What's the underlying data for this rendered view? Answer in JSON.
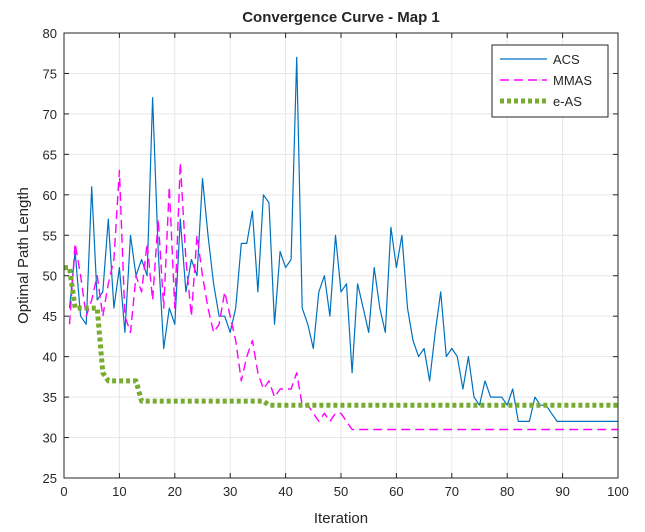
{
  "chart_data": {
    "type": "line",
    "title": "Convergence Curve - Map 1",
    "xlabel": "Iteration",
    "ylabel": "Optimal Path Length",
    "xlim": [
      0,
      100
    ],
    "ylim": [
      25,
      80
    ],
    "xticks": [
      0,
      10,
      20,
      30,
      40,
      50,
      60,
      70,
      80,
      90,
      100
    ],
    "yticks": [
      25,
      30,
      35,
      40,
      45,
      50,
      55,
      60,
      65,
      70,
      75,
      80
    ],
    "grid": true,
    "legend_position": "top-right",
    "series": [
      {
        "name": "ACS",
        "color": "#0072BD",
        "style": "solid",
        "x": [
          1,
          2,
          3,
          4,
          5,
          6,
          7,
          8,
          9,
          10,
          11,
          12,
          13,
          14,
          15,
          16,
          17,
          18,
          19,
          20,
          21,
          22,
          23,
          24,
          25,
          26,
          27,
          28,
          29,
          30,
          31,
          32,
          33,
          34,
          35,
          36,
          37,
          38,
          39,
          40,
          41,
          42,
          43,
          44,
          45,
          46,
          47,
          48,
          49,
          50,
          51,
          52,
          53,
          54,
          55,
          56,
          57,
          58,
          59,
          60,
          61,
          62,
          63,
          64,
          65,
          66,
          67,
          68,
          69,
          70,
          71,
          72,
          73,
          74,
          75,
          76,
          77,
          78,
          79,
          80,
          81,
          82,
          83,
          84,
          85,
          86,
          87,
          88,
          89,
          90,
          91,
          92,
          93,
          94,
          95,
          96,
          97,
          98,
          99,
          100
        ],
        "values": [
          46,
          53,
          45,
          44,
          61,
          47,
          48,
          57,
          46,
          51,
          43,
          55,
          50,
          52,
          50,
          72,
          53,
          41,
          46,
          44,
          57,
          48,
          52,
          50,
          62,
          55,
          49,
          45,
          45,
          43,
          46,
          54,
          54,
          58,
          48,
          60,
          59,
          44,
          53,
          51,
          52,
          77,
          46,
          44,
          41,
          48,
          50,
          45,
          55,
          48,
          49,
          38,
          49,
          46,
          43,
          51,
          46,
          43,
          56,
          51,
          55,
          46,
          42,
          40,
          41,
          37,
          43,
          48,
          40,
          41,
          40,
          36,
          40,
          35,
          34,
          37,
          35,
          35,
          35,
          34,
          36,
          32,
          32,
          32,
          35,
          34,
          34,
          33,
          32,
          32,
          32,
          32,
          32,
          32,
          32,
          32,
          32,
          32,
          32,
          32
        ]
      },
      {
        "name": "MMAS",
        "color": "#FF00FF",
        "style": "dashed",
        "x": [
          1,
          2,
          3,
          4,
          5,
          6,
          7,
          8,
          9,
          10,
          11,
          12,
          13,
          14,
          15,
          16,
          17,
          18,
          19,
          20,
          21,
          22,
          23,
          24,
          25,
          26,
          27,
          28,
          29,
          30,
          31,
          32,
          33,
          34,
          35,
          36,
          37,
          38,
          39,
          40,
          41,
          42,
          43,
          44,
          45,
          46,
          47,
          48,
          49,
          50,
          51,
          52,
          53,
          54,
          55,
          56,
          57,
          58,
          59,
          60,
          61,
          62,
          63,
          64,
          65,
          66,
          67,
          68,
          69,
          70,
          71,
          72,
          73,
          74,
          75,
          76,
          77,
          78,
          79,
          80,
          81,
          82,
          83,
          84,
          85,
          86,
          87,
          88,
          89,
          90,
          91,
          92,
          93,
          94,
          95,
          96,
          97,
          98,
          99,
          100
        ],
        "values": [
          44,
          54,
          50,
          45,
          47,
          50,
          45,
          49,
          52,
          63,
          45,
          43,
          50,
          48,
          54,
          47,
          57,
          46,
          61,
          46,
          64,
          52,
          45,
          55,
          50,
          46,
          43,
          44,
          48,
          45,
          42,
          37,
          40,
          42,
          38,
          36,
          37,
          35,
          36,
          36,
          36,
          38,
          34,
          34,
          33,
          32,
          33,
          32,
          33,
          33,
          32,
          31,
          31,
          31,
          31,
          31,
          31,
          31,
          31,
          31,
          31,
          31,
          31,
          31,
          31,
          31,
          31,
          31,
          31,
          31,
          31,
          31,
          31,
          31,
          31,
          31,
          31,
          31,
          31,
          31,
          31,
          31,
          31,
          31,
          31,
          31,
          31,
          31,
          31,
          31,
          31,
          31,
          31,
          31,
          31,
          31,
          31,
          31,
          31,
          31
        ]
      },
      {
        "name": "e-AS",
        "color": "#77AC30",
        "style": "dotted",
        "x": [
          0,
          1,
          2,
          3,
          4,
          5,
          6,
          7,
          8,
          9,
          10,
          11,
          12,
          13,
          14,
          15,
          16,
          17,
          18,
          19,
          20,
          21,
          22,
          23,
          24,
          25,
          26,
          27,
          28,
          29,
          30,
          31,
          32,
          33,
          34,
          35,
          36,
          37,
          38,
          39,
          40,
          41,
          42,
          43,
          44,
          45,
          46,
          47,
          48,
          49,
          50,
          51,
          52,
          53,
          54,
          55,
          56,
          57,
          58,
          59,
          60,
          61,
          62,
          63,
          64,
          65,
          66,
          67,
          68,
          69,
          70,
          71,
          72,
          73,
          74,
          75,
          76,
          77,
          78,
          79,
          80,
          81,
          82,
          83,
          84,
          85,
          86,
          87,
          88,
          89,
          90,
          91,
          92,
          93,
          94,
          95,
          96,
          97,
          98,
          99,
          100
        ],
        "values": [
          51,
          51,
          46,
          46,
          46,
          46,
          46,
          38,
          37,
          37,
          37,
          37,
          37,
          37,
          34.5,
          34.5,
          34.5,
          34.5,
          34.5,
          34.5,
          34.5,
          34.5,
          34.5,
          34.5,
          34.5,
          34.5,
          34.5,
          34.5,
          34.5,
          34.5,
          34.5,
          34.5,
          34.5,
          34.5,
          34.5,
          34.5,
          34.5,
          34,
          34,
          34,
          34,
          34,
          34,
          34,
          34,
          34,
          34,
          34,
          34,
          34,
          34,
          34,
          34,
          34,
          34,
          34,
          34,
          34,
          34,
          34,
          34,
          34,
          34,
          34,
          34,
          34,
          34,
          34,
          34,
          34,
          34,
          34,
          34,
          34,
          34,
          34,
          34,
          34,
          34,
          34,
          34,
          34,
          34,
          34,
          34,
          34,
          34,
          34,
          34,
          34,
          34,
          34,
          34,
          34,
          34,
          34,
          34,
          34,
          34,
          34,
          34
        ]
      }
    ]
  }
}
